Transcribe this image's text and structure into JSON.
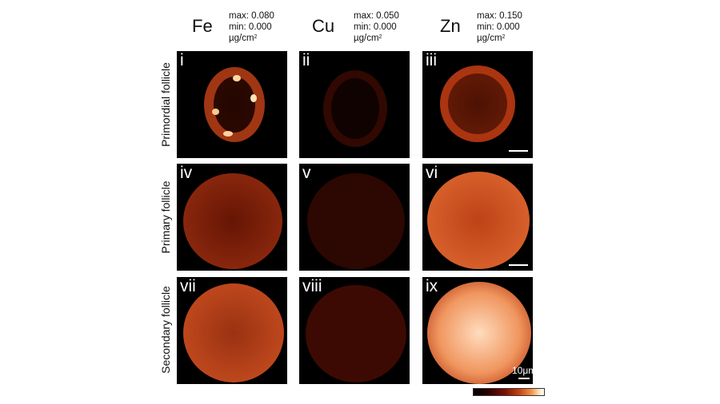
{
  "columns": [
    {
      "element": "Fe",
      "max": "max: 0.080",
      "min": "min: 0.000",
      "unit": "µg/cm",
      "unit_sup": "2"
    },
    {
      "element": "Cu",
      "max": "max: 0.050",
      "min": "min: 0.000",
      "unit": "µg/cm",
      "unit_sup": "2"
    },
    {
      "element": "Zn",
      "max": "max: 0.150",
      "min": "min: 0.000",
      "unit": "µg/cm",
      "unit_sup": "2"
    }
  ],
  "rows": [
    "Primordial follicle",
    "Primary follicle",
    "Secondary follicle"
  ],
  "panels": [
    "i",
    "ii",
    "iii",
    "iv",
    "v",
    "vi",
    "vii",
    "viii",
    "ix"
  ],
  "scale_label": "10μm",
  "colormap": {
    "low": "#000000",
    "mid": "#c84310",
    "high": "#ffffff"
  }
}
